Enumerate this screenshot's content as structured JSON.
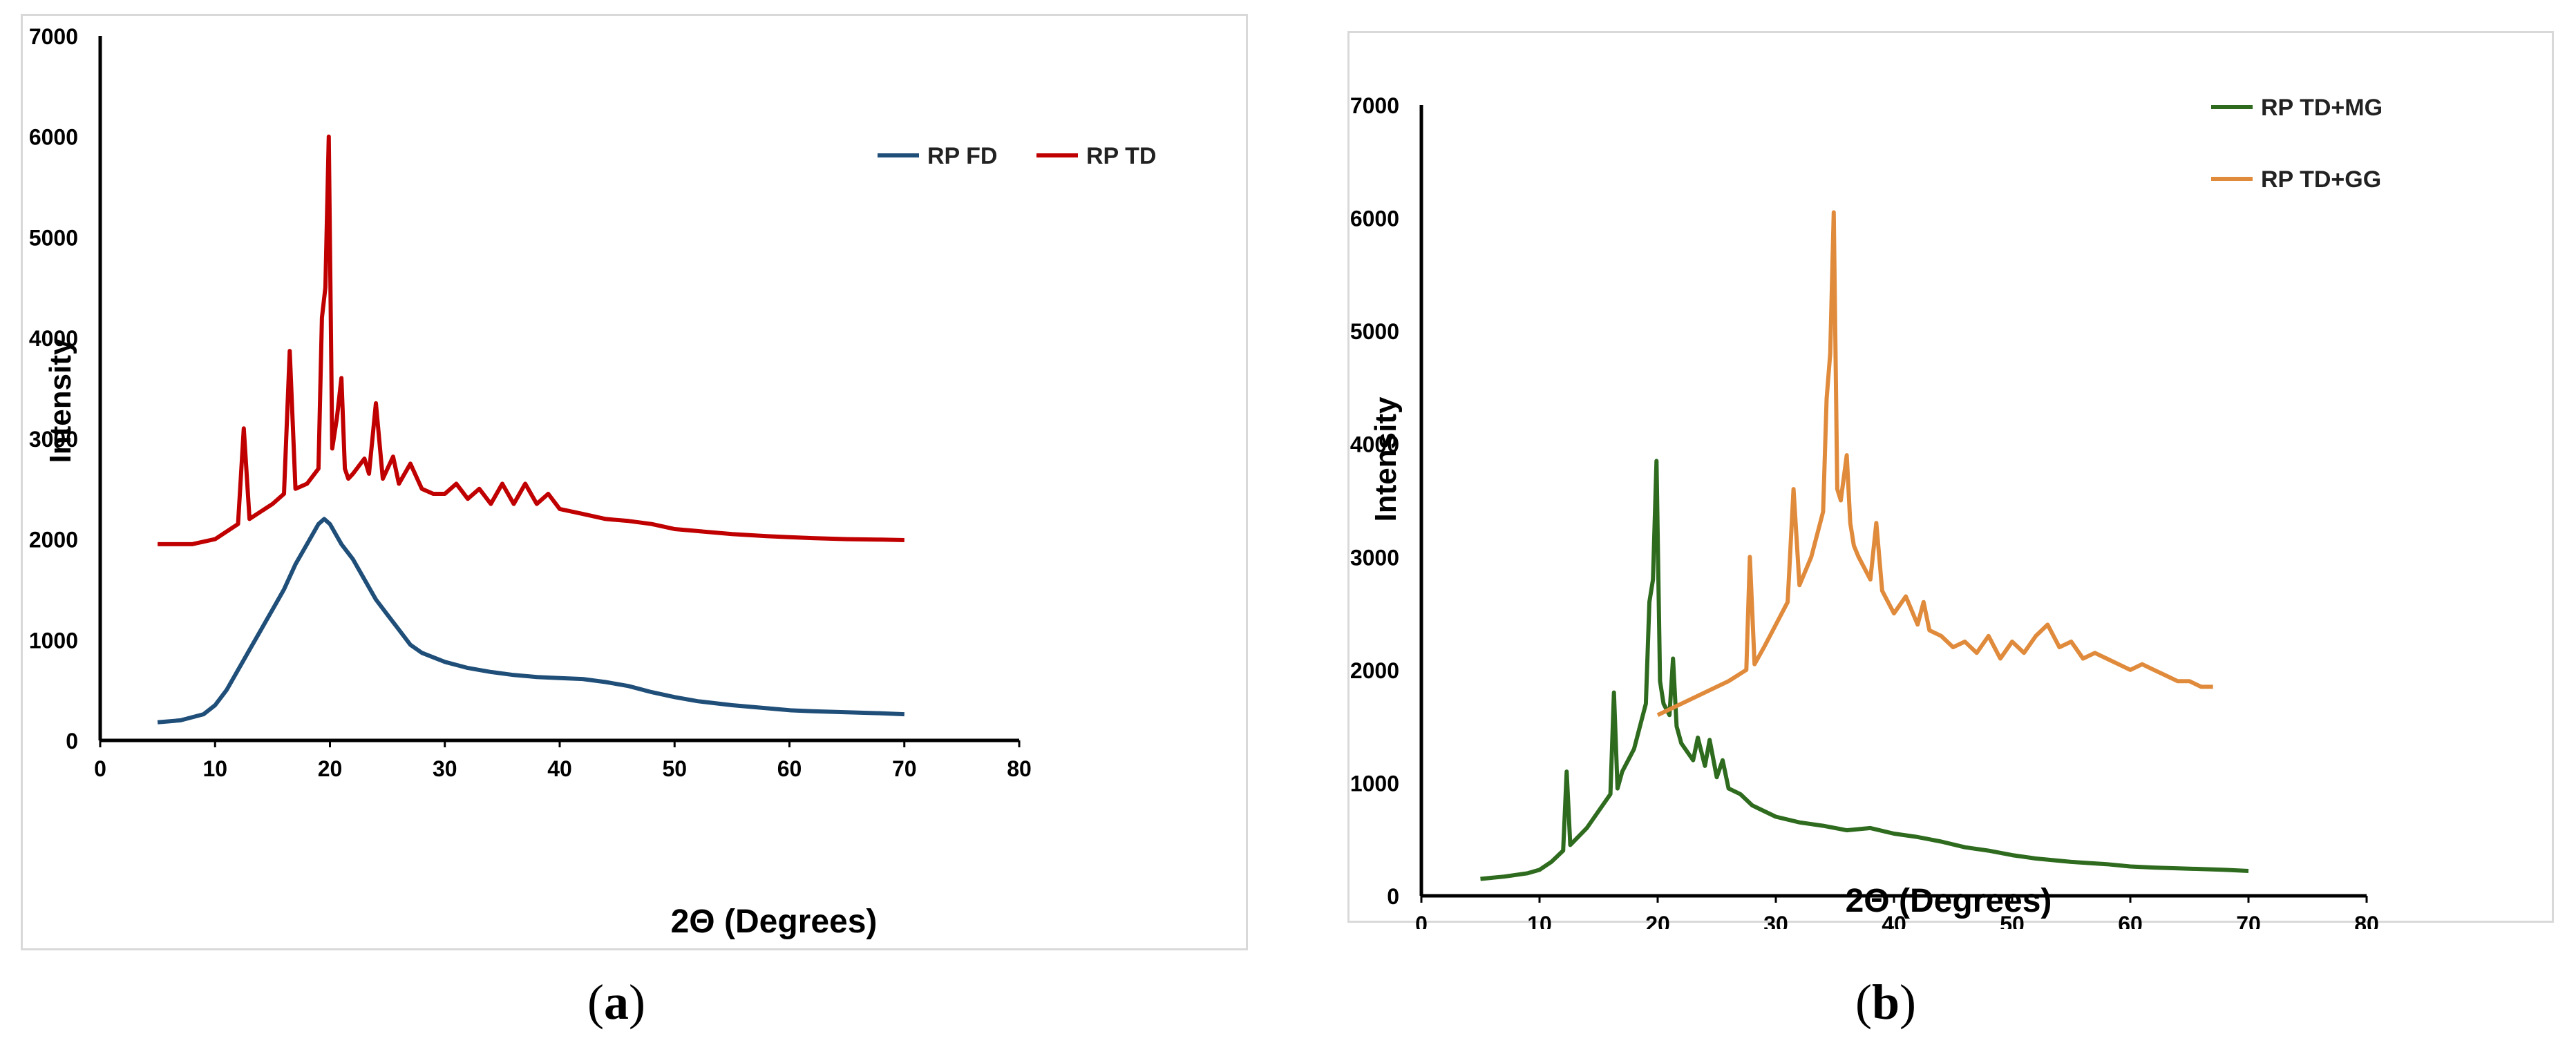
{
  "chart_data": [
    {
      "panel": "a",
      "type": "line",
      "caption": "a",
      "xlabel": "2Θ (Degrees)",
      "ylabel": "Intensity",
      "xlim": [
        0,
        80
      ],
      "ylim": [
        0,
        7000
      ],
      "xticks": [
        "0",
        "10",
        "20",
        "30",
        "40",
        "50",
        "60",
        "70",
        "80"
      ],
      "yticks": [
        "0",
        "1000",
        "2000",
        "3000",
        "4000",
        "5000",
        "6000",
        "7000"
      ],
      "legend_position": "top-right",
      "grid": false,
      "series": [
        {
          "name": "RP FD",
          "color": "#1f4e79",
          "x": [
            5,
            7,
            9,
            10,
            11,
            12,
            13,
            14,
            15,
            16,
            17,
            18,
            19,
            19.5,
            20,
            20.5,
            21,
            22,
            23,
            24,
            25,
            26,
            27,
            28,
            30,
            32,
            34,
            36,
            38,
            40,
            42,
            44,
            46,
            48,
            50,
            52,
            55,
            58,
            60,
            62,
            65,
            68,
            70
          ],
          "y": [
            180,
            200,
            260,
            350,
            500,
            700,
            900,
            1100,
            1300,
            1500,
            1750,
            1950,
            2150,
            2200,
            2150,
            2050,
            1950,
            1800,
            1600,
            1400,
            1250,
            1100,
            950,
            870,
            780,
            720,
            680,
            650,
            630,
            620,
            610,
            580,
            540,
            480,
            430,
            390,
            350,
            320,
            300,
            290,
            280,
            270,
            260
          ]
        },
        {
          "name": "RP TD",
          "color": "#c00000",
          "x": [
            5,
            8,
            10,
            12,
            12.5,
            13,
            15,
            16,
            16.5,
            17,
            18,
            19,
            19.3,
            19.6,
            19.9,
            20.2,
            20.6,
            21,
            21.3,
            21.6,
            22,
            23,
            23.4,
            24,
            24.6,
            25.5,
            26,
            27,
            28,
            29,
            30,
            31,
            32,
            33,
            34,
            35,
            36,
            37,
            38,
            39,
            40,
            42,
            44,
            46,
            48,
            50,
            52,
            55,
            58,
            60,
            62,
            65,
            68,
            70
          ],
          "y": [
            1950,
            1950,
            2000,
            2150,
            3100,
            2200,
            2350,
            2450,
            3870,
            2500,
            2550,
            2700,
            4200,
            4500,
            6000,
            2900,
            3200,
            3600,
            2700,
            2600,
            2650,
            2800,
            2650,
            3350,
            2600,
            2820,
            2550,
            2750,
            2500,
            2450,
            2450,
            2550,
            2400,
            2500,
            2350,
            2550,
            2350,
            2550,
            2350,
            2450,
            2300,
            2250,
            2200,
            2180,
            2150,
            2100,
            2080,
            2050,
            2030,
            2020,
            2010,
            2000,
            1995,
            1990
          ]
        }
      ]
    },
    {
      "panel": "b",
      "type": "line",
      "caption": "b",
      "xlabel": "2Θ (Degrees)",
      "ylabel": "Intensity",
      "xlim": [
        0,
        80
      ],
      "ylim": [
        0,
        7000
      ],
      "xticks": [
        "0",
        "10",
        "20",
        "30",
        "40",
        "50",
        "60",
        "70",
        "80"
      ],
      "yticks": [
        "0",
        "1000",
        "2000",
        "3000",
        "4000",
        "5000",
        "6000",
        "7000"
      ],
      "legend_position": "top-right",
      "grid": false,
      "series": [
        {
          "name": "RP TD+MG",
          "color": "#2e6b1e",
          "x": [
            5,
            7,
            9,
            10,
            11,
            12,
            12.3,
            12.6,
            14,
            15,
            16,
            16.3,
            16.6,
            17,
            18,
            19,
            19.3,
            19.6,
            19.9,
            20.2,
            20.5,
            21,
            21.3,
            21.6,
            22,
            23,
            23.4,
            24,
            24.4,
            25,
            25.5,
            26,
            27,
            28,
            30,
            32,
            34,
            36,
            38,
            40,
            42,
            44,
            46,
            48,
            50,
            52,
            55,
            58,
            60,
            62,
            65,
            68,
            70
          ],
          "y": [
            150,
            170,
            200,
            230,
            300,
            400,
            1100,
            450,
            600,
            750,
            900,
            1800,
            950,
            1100,
            1300,
            1700,
            2600,
            2800,
            3850,
            1900,
            1700,
            1600,
            2100,
            1500,
            1350,
            1200,
            1400,
            1150,
            1380,
            1050,
            1200,
            950,
            900,
            800,
            700,
            650,
            620,
            580,
            600,
            550,
            520,
            480,
            430,
            400,
            360,
            330,
            300,
            280,
            260,
            250,
            240,
            230,
            220
          ]
        },
        {
          "name": "RP TD+GG",
          "color": "#e08a3c",
          "x": [
            20,
            22,
            24,
            26,
            27.5,
            27.8,
            28.2,
            29,
            30,
            31,
            31.5,
            32,
            33,
            34,
            34.3,
            34.6,
            34.9,
            35.2,
            35.5,
            36,
            36.3,
            36.6,
            37,
            38,
            38.5,
            39,
            40,
            41,
            42,
            42.5,
            43,
            44,
            45,
            46,
            47,
            48,
            49,
            50,
            51,
            52,
            53,
            54,
            55,
            56,
            57,
            58,
            59,
            60,
            61,
            62,
            63,
            64,
            65,
            66,
            67
          ],
          "y": [
            1600,
            1700,
            1800,
            1900,
            2000,
            3000,
            2050,
            2200,
            2400,
            2600,
            3600,
            2750,
            3000,
            3400,
            4400,
            4800,
            6050,
            3600,
            3500,
            3900,
            3300,
            3100,
            3000,
            2800,
            3300,
            2700,
            2500,
            2650,
            2400,
            2600,
            2350,
            2300,
            2200,
            2250,
            2150,
            2300,
            2100,
            2250,
            2150,
            2300,
            2400,
            2200,
            2250,
            2100,
            2150,
            2100,
            2050,
            2000,
            2050,
            2000,
            1950,
            1900,
            1900,
            1850,
            1850
          ]
        }
      ]
    }
  ]
}
